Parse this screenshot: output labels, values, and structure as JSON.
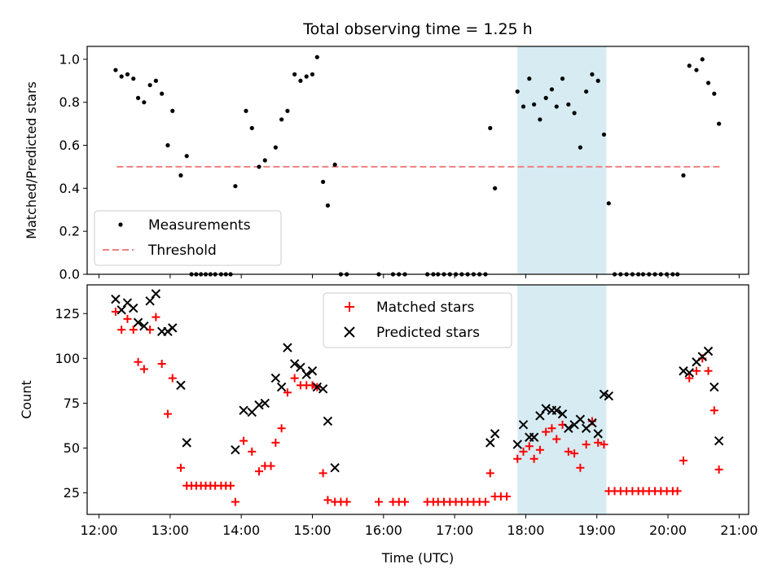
{
  "chart_data": [
    {
      "type": "scatter",
      "title": "Total observing time = 1.25 h",
      "xlabel": "",
      "ylabel": "Matched/Predicted stars",
      "ylim": [
        0,
        1.06
      ],
      "xlim": [
        "11:50",
        "21:08"
      ],
      "yticks": [
        "0.0",
        "0.2",
        "0.4",
        "0.6",
        "0.8",
        "1.0"
      ],
      "highlight_span": {
        "from": "17:53",
        "to": "19:08",
        "color": "#add8e6"
      },
      "legend": {
        "position": "lower-left",
        "entries": [
          "Measurements",
          "Threshold"
        ]
      },
      "threshold": {
        "name": "Threshold",
        "value": 0.5,
        "from": "12:15",
        "to": "20:45",
        "color": "#f08080"
      },
      "series": [
        {
          "name": "Measurements",
          "marker": "dot",
          "color": "#000000",
          "points": [
            [
              "12:14",
              0.95
            ],
            [
              "12:19",
              0.92
            ],
            [
              "12:24",
              0.93
            ],
            [
              "12:29",
              0.91
            ],
            [
              "12:33",
              0.82
            ],
            [
              "12:38",
              0.8
            ],
            [
              "12:43",
              0.88
            ],
            [
              "12:48",
              0.9
            ],
            [
              "12:53",
              0.84
            ],
            [
              "12:58",
              0.6
            ],
            [
              "13:02",
              0.76
            ],
            [
              "13:09",
              0.46
            ],
            [
              "13:14",
              0.55
            ],
            [
              "13:18",
              0.0
            ],
            [
              "13:22",
              0.0
            ],
            [
              "13:26",
              0.0
            ],
            [
              "13:30",
              0.0
            ],
            [
              "13:34",
              0.0
            ],
            [
              "13:38",
              0.0
            ],
            [
              "13:43",
              0.0
            ],
            [
              "13:47",
              0.0
            ],
            [
              "13:51",
              0.0
            ],
            [
              "13:55",
              0.41
            ],
            [
              "14:04",
              0.76
            ],
            [
              "14:09",
              0.68
            ],
            [
              "14:15",
              0.5
            ],
            [
              "14:20",
              0.53
            ],
            [
              "14:29",
              0.59
            ],
            [
              "14:34",
              0.72
            ],
            [
              "14:39",
              0.76
            ],
            [
              "14:45",
              0.93
            ],
            [
              "14:50",
              0.9
            ],
            [
              "14:55",
              0.92
            ],
            [
              "15:00",
              0.93
            ],
            [
              "15:04",
              1.01
            ],
            [
              "15:09",
              0.43
            ],
            [
              "15:13",
              0.32
            ],
            [
              "15:19",
              0.51
            ],
            [
              "15:24",
              0.0
            ],
            [
              "15:29",
              0.0
            ],
            [
              "15:56",
              0.0
            ],
            [
              "16:08",
              0.0
            ],
            [
              "16:13",
              0.0
            ],
            [
              "16:18",
              0.0
            ],
            [
              "16:37",
              0.0
            ],
            [
              "16:42",
              0.0
            ],
            [
              "16:46",
              0.0
            ],
            [
              "16:51",
              0.0
            ],
            [
              "16:56",
              0.0
            ],
            [
              "17:01",
              0.0
            ],
            [
              "17:06",
              0.0
            ],
            [
              "17:11",
              0.0
            ],
            [
              "17:16",
              0.0
            ],
            [
              "17:21",
              0.0
            ],
            [
              "17:26",
              0.0
            ],
            [
              "17:30",
              0.68
            ],
            [
              "17:34",
              0.4
            ],
            [
              "17:53",
              0.85
            ],
            [
              "17:58",
              0.78
            ],
            [
              "18:03",
              0.91
            ],
            [
              "18:07",
              0.79
            ],
            [
              "18:12",
              0.72
            ],
            [
              "18:17",
              0.82
            ],
            [
              "18:22",
              0.86
            ],
            [
              "18:26",
              0.78
            ],
            [
              "18:31",
              0.91
            ],
            [
              "18:36",
              0.79
            ],
            [
              "18:41",
              0.75
            ],
            [
              "18:46",
              0.59
            ],
            [
              "18:51",
              0.85
            ],
            [
              "18:56",
              0.93
            ],
            [
              "19:01",
              0.9
            ],
            [
              "19:06",
              0.65
            ],
            [
              "19:10",
              0.33
            ],
            [
              "19:15",
              0.0
            ],
            [
              "19:20",
              0.0
            ],
            [
              "19:25",
              0.0
            ],
            [
              "19:30",
              0.0
            ],
            [
              "19:35",
              0.0
            ],
            [
              "19:39",
              0.0
            ],
            [
              "19:44",
              0.0
            ],
            [
              "19:49",
              0.0
            ],
            [
              "19:54",
              0.0
            ],
            [
              "19:59",
              0.0
            ],
            [
              "20:04",
              0.0
            ],
            [
              "20:08",
              0.0
            ],
            [
              "20:13",
              0.46
            ],
            [
              "20:18",
              0.97
            ],
            [
              "20:24",
              0.95
            ],
            [
              "20:29",
              1.0
            ],
            [
              "20:34",
              0.89
            ],
            [
              "20:39",
              0.84
            ],
            [
              "20:43",
              0.7
            ]
          ]
        }
      ]
    },
    {
      "type": "scatter",
      "title": "",
      "xlabel": "Time (UTC)",
      "ylabel": "Count",
      "ylim": [
        13,
        141
      ],
      "xlim": [
        "11:50",
        "21:08"
      ],
      "xticks": [
        "12:00",
        "13:00",
        "14:00",
        "15:00",
        "16:00",
        "17:00",
        "18:00",
        "19:00",
        "20:00",
        "21:00"
      ],
      "yticks": [
        "25",
        "50",
        "75",
        "100",
        "125"
      ],
      "highlight_span": {
        "from": "17:53",
        "to": "19:08",
        "color": "#add8e6"
      },
      "legend": {
        "position": "upper-center",
        "entries": [
          "Matched stars",
          "Predicted stars"
        ]
      },
      "series": [
        {
          "name": "Matched stars",
          "marker": "plus",
          "color": "#ff0000",
          "points": [
            [
              "12:14",
              126
            ],
            [
              "12:19",
              116
            ],
            [
              "12:24",
              122
            ],
            [
              "12:29",
              116
            ],
            [
              "12:33",
              98
            ],
            [
              "12:38",
              94
            ],
            [
              "12:43",
              116
            ],
            [
              "12:48",
              123
            ],
            [
              "12:53",
              97
            ],
            [
              "12:58",
              69
            ],
            [
              "13:02",
              89
            ],
            [
              "13:09",
              39
            ],
            [
              "13:14",
              29
            ],
            [
              "13:18",
              29
            ],
            [
              "13:22",
              29
            ],
            [
              "13:26",
              29
            ],
            [
              "13:30",
              29
            ],
            [
              "13:34",
              29
            ],
            [
              "13:38",
              29
            ],
            [
              "13:43",
              29
            ],
            [
              "13:47",
              29
            ],
            [
              "13:51",
              29
            ],
            [
              "13:55",
              20
            ],
            [
              "14:02",
              54
            ],
            [
              "14:09",
              48
            ],
            [
              "14:15",
              37
            ],
            [
              "14:20",
              40
            ],
            [
              "14:25",
              40
            ],
            [
              "14:29",
              53
            ],
            [
              "14:34",
              61
            ],
            [
              "14:39",
              81
            ],
            [
              "14:45",
              89
            ],
            [
              "14:50",
              85
            ],
            [
              "14:55",
              85
            ],
            [
              "15:00",
              85
            ],
            [
              "15:04",
              84
            ],
            [
              "15:09",
              36
            ],
            [
              "15:13",
              21
            ],
            [
              "15:19",
              20
            ],
            [
              "15:24",
              20
            ],
            [
              "15:29",
              20
            ],
            [
              "15:56",
              20
            ],
            [
              "16:08",
              20
            ],
            [
              "16:13",
              20
            ],
            [
              "16:18",
              20
            ],
            [
              "16:37",
              20
            ],
            [
              "16:42",
              20
            ],
            [
              "16:46",
              20
            ],
            [
              "16:51",
              20
            ],
            [
              "16:56",
              20
            ],
            [
              "17:01",
              20
            ],
            [
              "17:06",
              20
            ],
            [
              "17:11",
              20
            ],
            [
              "17:16",
              20
            ],
            [
              "17:21",
              20
            ],
            [
              "17:26",
              20
            ],
            [
              "17:30",
              36
            ],
            [
              "17:34",
              23
            ],
            [
              "17:39",
              23
            ],
            [
              "17:44",
              23
            ],
            [
              "17:53",
              44
            ],
            [
              "17:58",
              48
            ],
            [
              "18:03",
              51
            ],
            [
              "18:07",
              44
            ],
            [
              "18:12",
              49
            ],
            [
              "18:17",
              59
            ],
            [
              "18:22",
              61
            ],
            [
              "18:26",
              55
            ],
            [
              "18:31",
              63
            ],
            [
              "18:36",
              48
            ],
            [
              "18:41",
              47
            ],
            [
              "18:46",
              39
            ],
            [
              "18:51",
              52
            ],
            [
              "18:56",
              65
            ],
            [
              "19:01",
              53
            ],
            [
              "19:06",
              52
            ],
            [
              "19:10",
              26
            ],
            [
              "19:15",
              26
            ],
            [
              "19:20",
              26
            ],
            [
              "19:25",
              26
            ],
            [
              "19:30",
              26
            ],
            [
              "19:35",
              26
            ],
            [
              "19:39",
              26
            ],
            [
              "19:44",
              26
            ],
            [
              "19:49",
              26
            ],
            [
              "19:54",
              26
            ],
            [
              "19:59",
              26
            ],
            [
              "20:04",
              26
            ],
            [
              "20:08",
              26
            ],
            [
              "20:13",
              43
            ],
            [
              "20:18",
              89
            ],
            [
              "20:24",
              93
            ],
            [
              "20:29",
              100
            ],
            [
              "20:34",
              93
            ],
            [
              "20:39",
              71
            ],
            [
              "20:43",
              38
            ]
          ]
        },
        {
          "name": "Predicted stars",
          "marker": "x",
          "color": "#000000",
          "points": [
            [
              "12:14",
              133
            ],
            [
              "12:19",
              127
            ],
            [
              "12:24",
              131
            ],
            [
              "12:29",
              128
            ],
            [
              "12:33",
              120
            ],
            [
              "12:38",
              118
            ],
            [
              "12:43",
              132
            ],
            [
              "12:48",
              136
            ],
            [
              "12:53",
              115
            ],
            [
              "12:58",
              115
            ],
            [
              "13:02",
              117
            ],
            [
              "13:09",
              85
            ],
            [
              "13:14",
              53
            ],
            [
              "13:55",
              49
            ],
            [
              "14:02",
              71
            ],
            [
              "14:09",
              70
            ],
            [
              "14:15",
              74
            ],
            [
              "14:20",
              75
            ],
            [
              "14:29",
              89
            ],
            [
              "14:34",
              84
            ],
            [
              "14:39",
              106
            ],
            [
              "14:45",
              97
            ],
            [
              "14:50",
              95
            ],
            [
              "14:55",
              91
            ],
            [
              "15:00",
              93
            ],
            [
              "15:04",
              84
            ],
            [
              "15:09",
              83
            ],
            [
              "15:13",
              65
            ],
            [
              "15:19",
              39
            ],
            [
              "17:30",
              53
            ],
            [
              "17:34",
              58
            ],
            [
              "17:53",
              52
            ],
            [
              "17:58",
              63
            ],
            [
              "18:03",
              56
            ],
            [
              "18:07",
              56
            ],
            [
              "18:12",
              68
            ],
            [
              "18:17",
              72
            ],
            [
              "18:22",
              71
            ],
            [
              "18:26",
              71
            ],
            [
              "18:31",
              69
            ],
            [
              "18:36",
              61
            ],
            [
              "18:41",
              63
            ],
            [
              "18:46",
              66
            ],
            [
              "18:51",
              61
            ],
            [
              "18:56",
              64
            ],
            [
              "19:01",
              58
            ],
            [
              "19:06",
              80
            ],
            [
              "19:10",
              79
            ],
            [
              "20:13",
              93
            ],
            [
              "20:18",
              92
            ],
            [
              "20:24",
              98
            ],
            [
              "20:29",
              101
            ],
            [
              "20:34",
              104
            ],
            [
              "20:39",
              84
            ],
            [
              "20:43",
              54
            ]
          ]
        }
      ]
    }
  ]
}
